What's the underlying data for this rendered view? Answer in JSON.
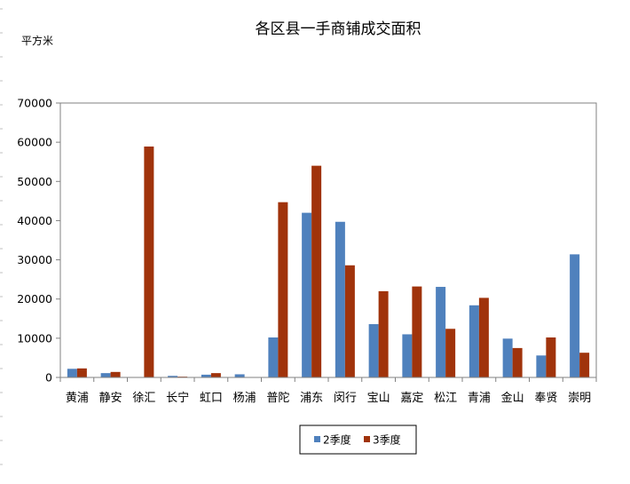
{
  "chart_data": {
    "type": "bar",
    "title": "各区县一手商铺成交面积",
    "ylabel": "平方米",
    "xlabel": "",
    "ylim": [
      0,
      70000
    ],
    "yticks": [
      0,
      10000,
      20000,
      30000,
      40000,
      50000,
      60000,
      70000
    ],
    "grid": false,
    "legend_position": "bottom",
    "categories": [
      "黄浦",
      "静安",
      "徐汇",
      "长宁",
      "虹口",
      "杨浦",
      "普陀",
      "浦东",
      "闵行",
      "宝山",
      "嘉定",
      "松江",
      "青浦",
      "金山",
      "奉贤",
      "崇明"
    ],
    "series": [
      {
        "name": "2季度",
        "color": "#4f81bd",
        "values": [
          2200,
          1100,
          0,
          400,
          700,
          800,
          10200,
          42000,
          39700,
          13600,
          11000,
          23100,
          18400,
          9900,
          5600,
          31400
        ]
      },
      {
        "name": "3季度",
        "color": "#a0330b",
        "values": [
          2300,
          1400,
          58900,
          200,
          1100,
          0,
          44700,
          54000,
          28600,
          22000,
          23200,
          12400,
          20300,
          7500,
          10200,
          6300
        ]
      }
    ]
  }
}
